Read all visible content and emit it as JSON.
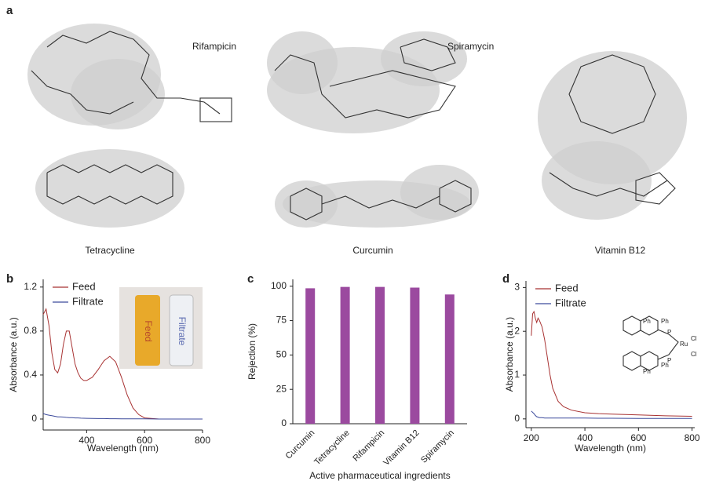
{
  "panel_a": {
    "label": "a",
    "molecules": [
      "Rifampicin",
      "Spiramycin",
      "Tetracycline",
      "Curcumin",
      "Vitamin B12"
    ]
  },
  "chart_data": [
    {
      "type": "line",
      "panel_label": "b",
      "x_label": "Wavelength (nm)",
      "y_label": "Absorbance (a.u.)",
      "x": [
        250,
        260,
        270,
        280,
        290,
        300,
        310,
        320,
        330,
        340,
        350,
        360,
        370,
        380,
        390,
        400,
        420,
        440,
        460,
        480,
        500,
        520,
        540,
        560,
        580,
        600,
        650,
        700,
        750,
        800
      ],
      "series": [
        {
          "name": "Feed",
          "color": "#a83232",
          "values": [
            0.95,
            1.0,
            0.85,
            0.6,
            0.45,
            0.42,
            0.5,
            0.68,
            0.8,
            0.8,
            0.65,
            0.5,
            0.42,
            0.37,
            0.35,
            0.35,
            0.38,
            0.45,
            0.53,
            0.57,
            0.52,
            0.38,
            0.22,
            0.1,
            0.04,
            0.01,
            0,
            0,
            0,
            0
          ]
        },
        {
          "name": "Filtrate",
          "color": "#3c4a9c",
          "values": [
            0.05,
            0.04,
            0.035,
            0.03,
            0.025,
            0.02,
            0.02,
            0.018,
            0.015,
            0.013,
            0.012,
            0.01,
            0.01,
            0.008,
            0.007,
            0.006,
            0.005,
            0.004,
            0.004,
            0.003,
            0.003,
            0.002,
            0.002,
            0.002,
            0.001,
            0.001,
            0,
            0,
            0,
            0
          ]
        }
      ],
      "xlim": [
        250,
        800
      ],
      "xticks": [
        400,
        600,
        800
      ],
      "ylim": [
        -0.1,
        1.27
      ],
      "yticks": [
        0,
        0.4,
        0.8,
        1.2
      ],
      "legend": "upper left",
      "inset_labels": [
        "Feed",
        "Filtrate"
      ]
    },
    {
      "type": "bar",
      "panel_label": "c",
      "x_label": "Active pharmaceutical ingredients",
      "y_label": "Rejection (%)",
      "categories": [
        "Curcumin",
        "Tetracycline",
        "Rifampicin",
        "Vitamin B12",
        "Spiramycin"
      ],
      "values": [
        98.5,
        99.5,
        99.5,
        99,
        94
      ],
      "color": "#9b4a9f",
      "ylim": [
        0,
        105
      ],
      "yticks": [
        0,
        25,
        50,
        75,
        100
      ]
    },
    {
      "type": "line",
      "panel_label": "d",
      "x_label": "Wavelength (nm)",
      "y_label": "Absorbance (a.u.)",
      "x": [
        200,
        205,
        210,
        215,
        220,
        225,
        230,
        240,
        250,
        260,
        270,
        280,
        300,
        320,
        350,
        400,
        450,
        500,
        600,
        700,
        800
      ],
      "series": [
        {
          "name": "Feed",
          "color": "#a83232",
          "values": [
            1.9,
            2.4,
            2.45,
            2.3,
            2.2,
            2.3,
            2.25,
            2.1,
            1.8,
            1.4,
            1.0,
            0.7,
            0.4,
            0.28,
            0.2,
            0.14,
            0.12,
            0.11,
            0.09,
            0.07,
            0.06
          ]
        },
        {
          "name": "Filtrate",
          "color": "#3c4a9c",
          "values": [
            0.18,
            0.15,
            0.12,
            0.08,
            0.05,
            0.04,
            0.03,
            0.03,
            0.02,
            0.02,
            0.02,
            0.02,
            0.02,
            0.02,
            0.02,
            0.02,
            0.015,
            0.015,
            0.01,
            0.01,
            0.01
          ]
        }
      ],
      "xlim": [
        180,
        810
      ],
      "xticks": [
        200,
        400,
        600,
        800
      ],
      "ylim": [
        -0.2,
        3.15
      ],
      "yticks": [
        0,
        1,
        2,
        3
      ],
      "legend": "upper left",
      "inset_labels": [
        "Ph",
        "Ph",
        "P",
        "Ru",
        "Cl",
        "Cl",
        "P",
        "Ph",
        "Ph"
      ]
    }
  ]
}
